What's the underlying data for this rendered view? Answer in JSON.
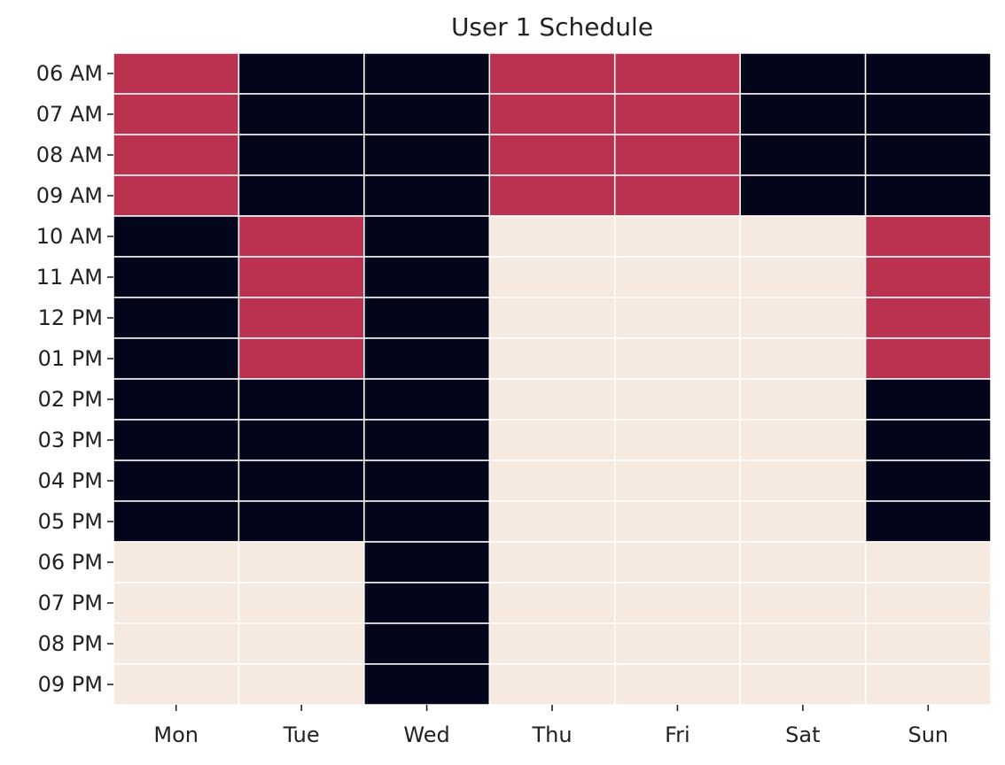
{
  "chart_data": {
    "type": "heatmap",
    "title": "User 1 Schedule",
    "xlabel": "",
    "ylabel": "",
    "columns": [
      "Mon",
      "Tue",
      "Wed",
      "Thu",
      "Fri",
      "Sat",
      "Sun"
    ],
    "rows": [
      "06 AM",
      "07 AM",
      "08 AM",
      "09 AM",
      "10 AM",
      "11 AM",
      "12 PM",
      "01 PM",
      "02 PM",
      "03 PM",
      "04 PM",
      "05 PM",
      "06 PM",
      "07 PM",
      "08 PM",
      "09 PM"
    ],
    "values": [
      [
        1,
        0,
        0,
        1,
        1,
        0,
        0
      ],
      [
        1,
        0,
        0,
        1,
        1,
        0,
        0
      ],
      [
        1,
        0,
        0,
        1,
        1,
        0,
        0
      ],
      [
        1,
        0,
        0,
        1,
        1,
        0,
        0
      ],
      [
        0,
        1,
        0,
        2,
        2,
        2,
        1
      ],
      [
        0,
        1,
        0,
        2,
        2,
        2,
        1
      ],
      [
        0,
        1,
        0,
        2,
        2,
        2,
        1
      ],
      [
        0,
        1,
        0,
        2,
        2,
        2,
        1
      ],
      [
        0,
        0,
        0,
        2,
        2,
        2,
        0
      ],
      [
        0,
        0,
        0,
        2,
        2,
        2,
        0
      ],
      [
        0,
        0,
        0,
        2,
        2,
        2,
        0
      ],
      [
        0,
        0,
        0,
        2,
        2,
        2,
        0
      ],
      [
        2,
        2,
        0,
        2,
        2,
        2,
        2
      ],
      [
        2,
        2,
        0,
        2,
        2,
        2,
        2
      ],
      [
        2,
        2,
        0,
        2,
        2,
        2,
        2
      ],
      [
        2,
        2,
        0,
        2,
        2,
        2,
        2
      ]
    ],
    "value_colors": [
      "#03051a",
      "#bb3250",
      "#f6e9df"
    ],
    "colorbar": false,
    "grid": false
  }
}
